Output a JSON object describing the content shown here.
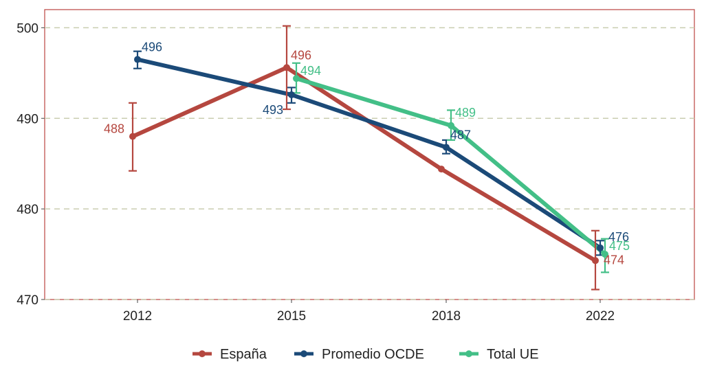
{
  "chart_data": {
    "type": "line",
    "title": "",
    "xlabel": "",
    "ylabel": "",
    "categories": [
      "2012",
      "2015",
      "2018",
      "2022"
    ],
    "ylim": [
      470,
      502
    ],
    "yticks": [
      470,
      480,
      490,
      500
    ],
    "grid": "horizontal dashed",
    "legend_position": "bottom",
    "series": [
      {
        "name": "España",
        "color": "#b5473f",
        "values": [
          488,
          495.6,
          484.4,
          474.3
        ],
        "error_low": [
          484.2,
          491,
          null,
          471.1
        ],
        "error_high": [
          491.7,
          500.2,
          null,
          477.6
        ],
        "labels": [
          "488",
          "496",
          "",
          "474"
        ]
      },
      {
        "name": "Promedio OCDE",
        "color": "#1b4a78",
        "values": [
          496.5,
          492.6,
          486.8,
          475.7
        ],
        "error_low": [
          495.5,
          491.7,
          486.1,
          474.9
        ],
        "error_high": [
          497.4,
          493.4,
          487.6,
          476.5
        ],
        "labels": [
          "496",
          "493",
          "487",
          "476"
        ]
      },
      {
        "name": "Total UE",
        "color": "#43bf87",
        "values": [
          null,
          494.4,
          489.2,
          475
        ],
        "error_low": [
          null,
          492.8,
          487.6,
          473
        ],
        "error_high": [
          null,
          496.1,
          490.9,
          476.7
        ],
        "labels": [
          "",
          "494",
          "489",
          "475"
        ]
      }
    ]
  }
}
